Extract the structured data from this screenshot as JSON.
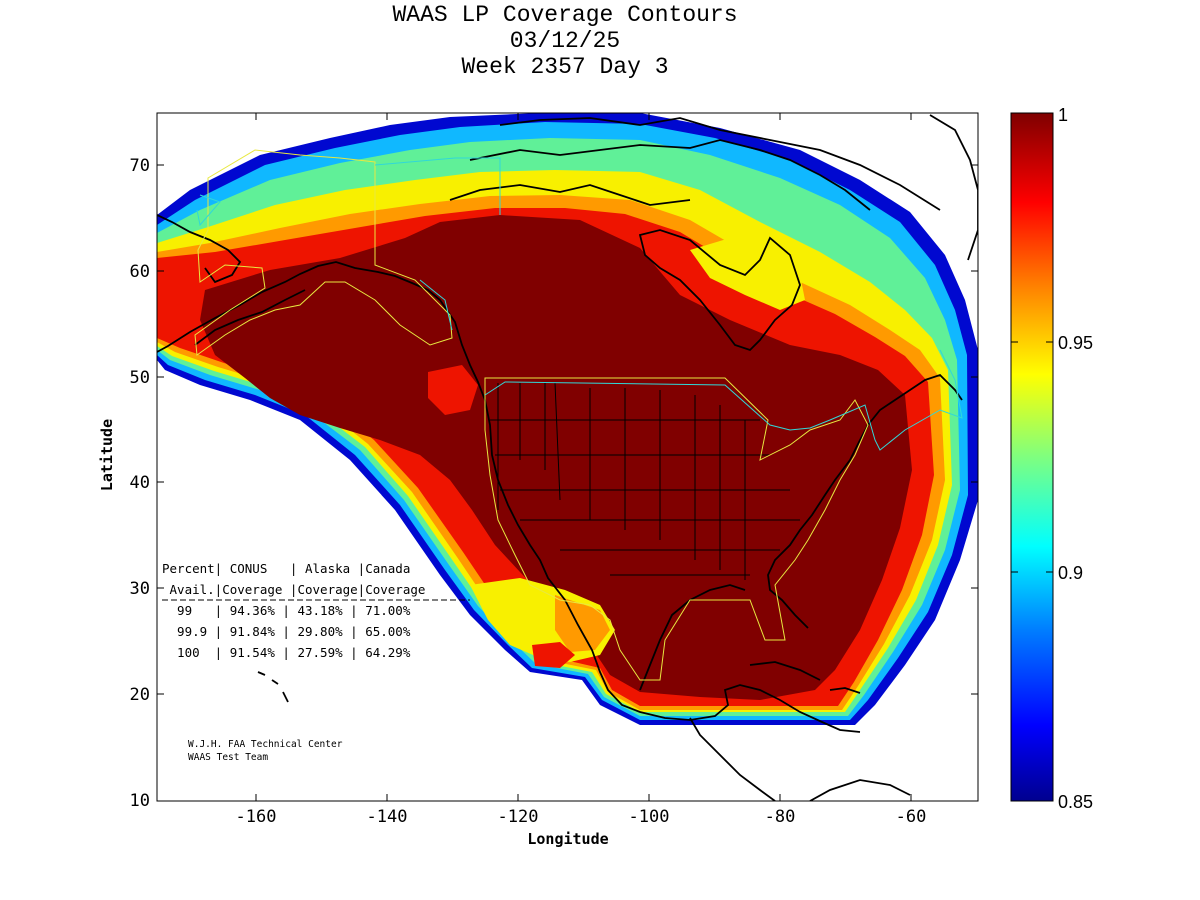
{
  "title": {
    "line1": "WAAS LP Coverage Contours",
    "line2": "03/12/25",
    "line3": "Week 2357 Day 3"
  },
  "axes": {
    "xlabel": "Longitude",
    "ylabel": "Latitude",
    "xlim": [
      -175,
      -50
    ],
    "ylim": [
      10,
      75
    ],
    "xticks": [
      -160,
      -140,
      -120,
      -100,
      -80,
      -60
    ],
    "yticks": [
      10,
      20,
      30,
      40,
      50,
      60,
      70
    ]
  },
  "colorbar": {
    "range": [
      0.85,
      1
    ],
    "ticks": [
      "1",
      "0.95",
      "0.9",
      "0.85"
    ],
    "colormap": "jet"
  },
  "coverage_table": {
    "header1": "Percent| CONUS   | Alaska |Canada",
    "header2": " Avail.|Coverage |Coverage|Coverage",
    "rows": [
      "  99   | 94.36% | 43.18% | 71.00%",
      "  99.9 | 91.84% | 29.80% | 65.00%",
      "  100  | 91.54% | 27.59% | 64.29%"
    ]
  },
  "credit": {
    "line1": "W.J.H. FAA Technical Center",
    "line2": "WAAS Test Team"
  },
  "chart_data": {
    "type": "heatmap",
    "title": "WAAS LP Coverage Contours",
    "xlabel": "Longitude",
    "ylabel": "Latitude",
    "x_range": [
      -175,
      -50
    ],
    "y_range": [
      10,
      75
    ],
    "value_range": [
      0.85,
      1
    ],
    "table_columns": [
      "Percent Avail.",
      "CONUS Coverage",
      "Alaska Coverage",
      "Canada Coverage"
    ],
    "table_rows": [
      [
        "99",
        "94.36%",
        "43.18%",
        "71.00%"
      ],
      [
        "99.9",
        "91.84%",
        "29.80%",
        "65.00%"
      ],
      [
        "100",
        "91.54%",
        "27.59%",
        "64.29%"
      ]
    ]
  }
}
